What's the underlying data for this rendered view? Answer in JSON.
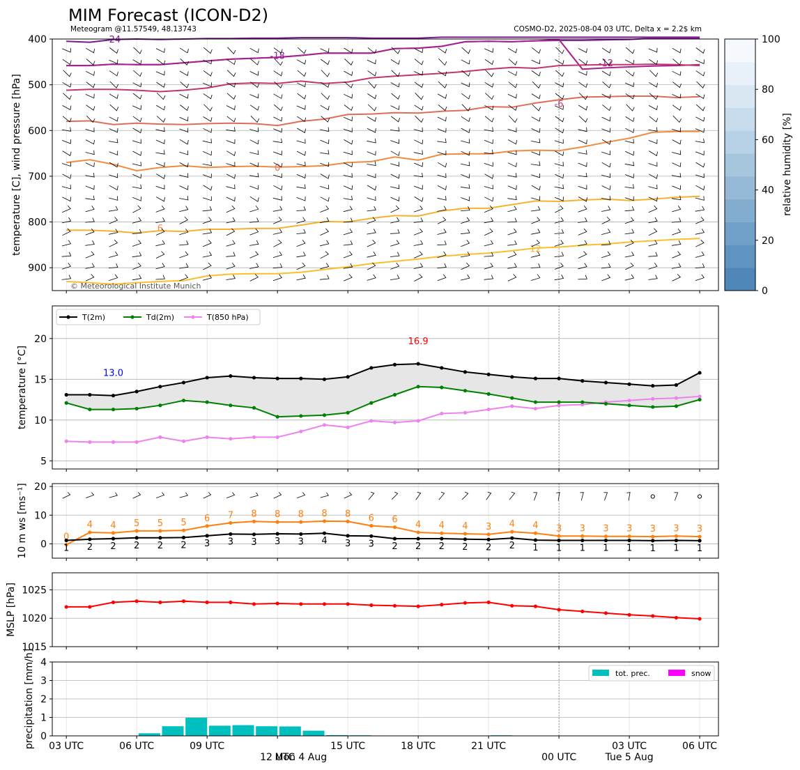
{
  "header": {
    "title": "MIM Forecast (ICON-D2)",
    "subtitle_left": "Meteogram @11.57549, 48.13743",
    "subtitle_right": "COSMO-D2, 2025-08-04 03 UTC, Delta x = 2.2$ km"
  },
  "time_axis": {
    "tick_labels": [
      "03 UTC",
      "06 UTC",
      "09 UTC",
      "12 UTC",
      "15 UTC",
      "18 UTC",
      "21 UTC",
      "00 UTC",
      "03 UTC",
      "06 UTC"
    ],
    "tick_hours": [
      0,
      3,
      6,
      9,
      12,
      15,
      18,
      21,
      24,
      27
    ],
    "date_labels": [
      {
        "text": "Mon 4 Aug",
        "hour": 10
      },
      {
        "text": "Tue 5 Aug",
        "hour": 24
      }
    ],
    "day_boundary_hour": 21,
    "range": [
      -0.6,
      27.8
    ]
  },
  "chart_data": [
    {
      "type": "contour",
      "name": "upper-air",
      "ylabel": "temperature [C], wind pressure [hPa]",
      "ylim": [
        950,
        400
      ],
      "yticks": [
        400,
        500,
        600,
        700,
        800,
        900
      ],
      "copyright": "© Meteorological Institute Munich",
      "colorbar": {
        "label": "relative humidity [%]",
        "range": [
          0,
          100
        ],
        "ticks": [
          0,
          20,
          40,
          60,
          80,
          100
        ],
        "colors": [
          "#4f87b9",
          "#5f93c0",
          "#71a0c8",
          "#83adcf",
          "#95b9d6",
          "#a6c6de",
          "#b7d1e6",
          "#c8dced",
          "#d9e7f3",
          "#e8f1f9",
          "#f5f9fd"
        ]
      },
      "isotherms": [
        {
          "label": "-24",
          "color": "#7a1a8e",
          "label_pos": [
            2,
            400
          ],
          "values": [
            405,
            407,
            401,
            400,
            401,
            400,
            399,
            399,
            398,
            398,
            397,
            397,
            397,
            398,
            398,
            398,
            396,
            396,
            396,
            396,
            396,
            396,
            396,
            396,
            396,
            396,
            396,
            396
          ]
        },
        {
          "label": "-18",
          "color": "#8c1fa0",
          "label_pos": [
            9,
            436
          ],
          "values": [
            458,
            458,
            455,
            456,
            456,
            452,
            448,
            444,
            442,
            440,
            436,
            431,
            431,
            431,
            421,
            420,
            416,
            406,
            405,
            406,
            404,
            403,
            403,
            402,
            401,
            398,
            398,
            398
          ]
        },
        {
          "label": "-12",
          "color": "#a8218f",
          "label_pos": [
            23,
            452
          ],
          "values": [
            458,
            458,
            455,
            456,
            456,
            452,
            448,
            444,
            442,
            440,
            436,
            431,
            431,
            431,
            421,
            420,
            416,
            406,
            405,
            406,
            404,
            401,
            466,
            463,
            461,
            459,
            458,
            456
          ]
        },
        {
          "label": "-6",
          "color": "#c2366f",
          "label_pos": [
            21,
            541
          ],
          "values": [
            512,
            510,
            510,
            512,
            515,
            512,
            507,
            498,
            496,
            497,
            492,
            497,
            494,
            485,
            481,
            478,
            475,
            471,
            466,
            462,
            464,
            458,
            457,
            456,
            456,
            455,
            456,
            458
          ]
        },
        {
          "label": "0",
          "color": "#e06c5a",
          "label_pos": [
            9,
            680
          ],
          "values": [
            580,
            579,
            587,
            584,
            586,
            587,
            585,
            584,
            585,
            589,
            580,
            575,
            565,
            564,
            561,
            562,
            558,
            556,
            548,
            549,
            540,
            533,
            527,
            526,
            525,
            525,
            528,
            526
          ]
        },
        {
          "label": "6",
          "color": "#f28b40",
          "label_pos": [
            4,
            813
          ],
          "values": [
            670,
            664,
            674,
            688,
            681,
            677,
            681,
            679,
            678,
            680,
            679,
            677,
            670,
            668,
            658,
            665,
            652,
            651,
            651,
            645,
            643,
            644,
            636,
            626,
            617,
            604,
            602,
            602
          ]
        },
        {
          "label": "12",
          "color": "#f9b12c",
          "label_pos": [
            20,
            858
          ],
          "values": [
            818,
            818,
            820,
            824,
            819,
            821,
            816,
            816,
            814,
            814,
            807,
            799,
            800,
            792,
            786,
            787,
            776,
            770,
            770,
            762,
            754,
            755,
            752,
            750,
            753,
            750,
            746,
            744
          ]
        },
        {
          "label": "",
          "color": "#fbbf2c",
          "label_pos": null,
          "values": [
            930,
            933,
            936,
            933,
            930,
            928,
            918,
            914,
            913,
            913,
            910,
            904,
            898,
            891,
            886,
            881,
            875,
            871,
            868,
            863,
            857,
            855,
            851,
            848,
            844,
            841,
            838,
            836
          ]
        }
      ]
    },
    {
      "type": "line",
      "name": "surface temperature",
      "ylabel": "temperature [$^\\circ$C]",
      "ylim": [
        4,
        24
      ],
      "yticks": [
        5,
        10,
        15,
        20
      ],
      "legend_position": "top-left",
      "annotations": [
        {
          "text": "13.0",
          "hour": 2,
          "value": 13.0,
          "color": "#0000ff"
        },
        {
          "text": "16.9",
          "hour": 15,
          "value": 16.9,
          "color": "#ff0000"
        }
      ],
      "x_hours": [
        0,
        1,
        2,
        3,
        4,
        5,
        6,
        7,
        8,
        9,
        10,
        11,
        12,
        13,
        14,
        15,
        16,
        17,
        18,
        19,
        20,
        21,
        22,
        23,
        24,
        25,
        26,
        27
      ],
      "series": [
        {
          "name": "T(2m)",
          "color": "#000000",
          "values": [
            13.1,
            13.1,
            13.0,
            13.5,
            14.1,
            14.6,
            15.2,
            15.4,
            15.2,
            15.1,
            15.1,
            15.0,
            15.3,
            16.4,
            16.8,
            16.9,
            16.4,
            15.9,
            15.6,
            15.3,
            15.1,
            15.1,
            14.8,
            14.6,
            14.4,
            14.2,
            14.3,
            15.8
          ]
        },
        {
          "name": "Td(2m)",
          "color": "#008000",
          "values": [
            12.1,
            11.3,
            11.3,
            11.4,
            11.8,
            12.4,
            12.2,
            11.8,
            11.5,
            10.4,
            10.5,
            10.6,
            10.9,
            12.1,
            13.1,
            14.1,
            14.0,
            13.6,
            13.2,
            12.7,
            12.2,
            12.2,
            12.2,
            12.0,
            11.8,
            11.6,
            11.7,
            12.5
          ]
        },
        {
          "name": "T(850 hPa)",
          "color": "#ee82ee",
          "values": [
            7.4,
            7.3,
            7.3,
            7.3,
            7.9,
            7.4,
            7.9,
            7.7,
            7.9,
            7.9,
            8.6,
            9.4,
            9.1,
            9.9,
            9.7,
            9.9,
            10.8,
            10.9,
            11.3,
            11.7,
            11.4,
            11.8,
            11.9,
            12.2,
            12.4,
            12.6,
            12.7,
            12.9
          ]
        }
      ]
    },
    {
      "type": "line",
      "name": "10 m wind",
      "ylabel": "10 m ws [ms$^{-1}$]",
      "ylim": [
        -5,
        21
      ],
      "yticks": [
        0,
        10,
        20
      ],
      "x_hours": [
        0,
        1,
        2,
        3,
        4,
        5,
        6,
        7,
        8,
        9,
        10,
        11,
        12,
        13,
        14,
        15,
        16,
        17,
        18,
        19,
        20,
        21,
        22,
        23,
        24,
        25,
        26,
        27
      ],
      "series": [
        {
          "name": "wind gust",
          "color": "#ff7f0e",
          "values": [
            -0.3,
            4.0,
            3.8,
            4.5,
            4.5,
            4.7,
            6.2,
            7.3,
            7.8,
            7.6,
            7.6,
            7.9,
            7.8,
            6.3,
            5.8,
            4.0,
            3.7,
            3.5,
            3.3,
            4.2,
            3.7,
            2.7,
            2.7,
            2.6,
            2.6,
            2.5,
            2.7,
            2.5
          ],
          "labels": [
            "0",
            "4",
            "4",
            "5",
            "5",
            "5",
            "6",
            "7",
            "8",
            "8",
            "8",
            "8",
            "8",
            "6",
            "6",
            "4",
            "4",
            "4",
            "3",
            "4",
            "4",
            "3",
            "3",
            "3",
            "3",
            "3",
            "3",
            "3"
          ]
        },
        {
          "name": "wind speed",
          "color": "#000000",
          "values": [
            1.2,
            1.6,
            1.8,
            2.1,
            2.1,
            2.2,
            2.8,
            3.4,
            3.3,
            3.5,
            3.4,
            3.7,
            2.8,
            2.7,
            1.8,
            1.8,
            1.8,
            1.6,
            1.5,
            2.0,
            1.3,
            1.2,
            1.2,
            1.2,
            1.2,
            1.1,
            1.2,
            1.1
          ],
          "labels": [
            "1",
            "2",
            "2",
            "2",
            "2",
            "2",
            "3",
            "3",
            "3",
            "3",
            "3",
            "4",
            "3",
            "3",
            "2",
            "2",
            "2",
            "2",
            "2",
            "2",
            "1",
            "1",
            "1",
            "1",
            "1",
            "1",
            "1",
            "1"
          ]
        }
      ]
    },
    {
      "type": "line",
      "name": "sea level pressure",
      "ylabel": "MSLP [hPa]",
      "ylim": [
        1015,
        1028
      ],
      "yticks": [
        1015,
        1020,
        1025
      ],
      "x_hours": [
        0,
        1,
        2,
        3,
        4,
        5,
        6,
        7,
        8,
        9,
        10,
        11,
        12,
        13,
        14,
        15,
        16,
        17,
        18,
        19,
        20,
        21,
        22,
        23,
        24,
        25,
        26,
        27
      ],
      "series": [
        {
          "name": "MSLP",
          "color": "#ff0000",
          "values": [
            1022.0,
            1022.0,
            1022.8,
            1023.0,
            1022.8,
            1023.0,
            1022.8,
            1022.8,
            1022.5,
            1022.6,
            1022.5,
            1022.5,
            1022.5,
            1022.3,
            1022.2,
            1022.1,
            1022.4,
            1022.7,
            1022.8,
            1022.2,
            1022.1,
            1021.5,
            1021.2,
            1020.9,
            1020.6,
            1020.4,
            1020.1,
            1019.9
          ]
        }
      ]
    },
    {
      "type": "bar",
      "name": "precipitation",
      "ylabel": "precipitation [mm/h]",
      "ylim": [
        0,
        4
      ],
      "yticks": [
        0,
        1,
        2,
        3,
        4
      ],
      "legend_position": "top-right",
      "x_hours": [
        0,
        1,
        2,
        3,
        4,
        5,
        6,
        7,
        8,
        9,
        10,
        11,
        12,
        13,
        14,
        15,
        16,
        17,
        18,
        19,
        20,
        21,
        22,
        23,
        24,
        25,
        26,
        27
      ],
      "series": [
        {
          "name": "tot. prec.",
          "color": "#00bfbf",
          "values": [
            0,
            0,
            0,
            0.14,
            0.52,
            0.98,
            0.55,
            0.58,
            0.52,
            0.51,
            0.28,
            0.04,
            0.03,
            0,
            0,
            0,
            0,
            0,
            0.03,
            0,
            0,
            0,
            0,
            0,
            0,
            0,
            0,
            0
          ]
        },
        {
          "name": "snow",
          "color": "#ff00ff",
          "values": [
            0,
            0,
            0,
            0,
            0,
            0,
            0,
            0,
            0,
            0,
            0,
            0,
            0,
            0,
            0,
            0,
            0,
            0,
            0,
            0,
            0,
            0,
            0,
            0,
            0,
            0,
            0,
            0
          ]
        }
      ]
    }
  ]
}
